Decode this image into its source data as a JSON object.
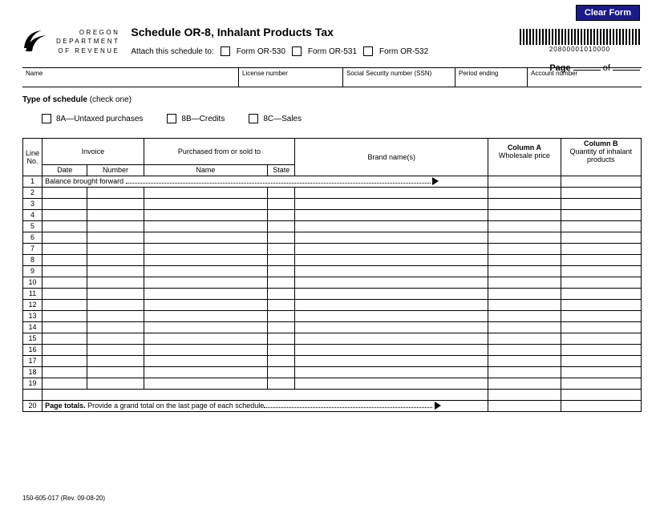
{
  "buttons": {
    "clear": "Clear Form"
  },
  "agency": {
    "line1": "OREGON",
    "line2": "DEPARTMENT",
    "line3": "OF REVENUE"
  },
  "title": "Schedule OR-8, Inhalant Products Tax",
  "attach": {
    "label": "Attach this schedule to:",
    "opts": [
      "Form OR-530",
      "Form OR-531",
      "Form OR-532"
    ]
  },
  "barcode_number": "20800001010000",
  "page_label": "Page",
  "page_of": "of",
  "info_fields": {
    "name": "Name",
    "license": "License number",
    "ssn": "Social Security number (SSN)",
    "period": "Period ending",
    "account": "Account number"
  },
  "type_schedule": {
    "label_bold": "Type of schedule",
    "label_rest": " (check one)",
    "opts": [
      "8A—Untaxed purchases",
      "8B—Credits",
      "8C—Sales"
    ]
  },
  "table": {
    "headers": {
      "line": "Line\nNo.",
      "invoice": "Invoice",
      "purchased": "Purchased from or sold to",
      "date": "Date",
      "number": "Number",
      "name": "Name",
      "state": "State",
      "brand": "Brand name(s)",
      "colA_top": "Column A",
      "colA_sub": "Wholesale price",
      "colB_top": "Column B",
      "colB_sub": "Quantity of inhalant products"
    },
    "row1": "Balance brought forward",
    "totals_row_num": "20",
    "totals_bold": "Page totals.",
    "totals_rest": " Provide a grand total on the last page of each schedule",
    "num_rows": 19,
    "col_widths": {
      "line": 24,
      "date": 56,
      "number": 70,
      "name": 154,
      "state": 34,
      "brand": 240,
      "colA": 90,
      "colB": 100
    }
  },
  "footer": "150-605-017 (Rev. 09-08-20)",
  "colors": {
    "button_bg": "#1a1a8a",
    "button_fg": "#ffffff",
    "line": "#000000",
    "bg": "#ffffff"
  }
}
